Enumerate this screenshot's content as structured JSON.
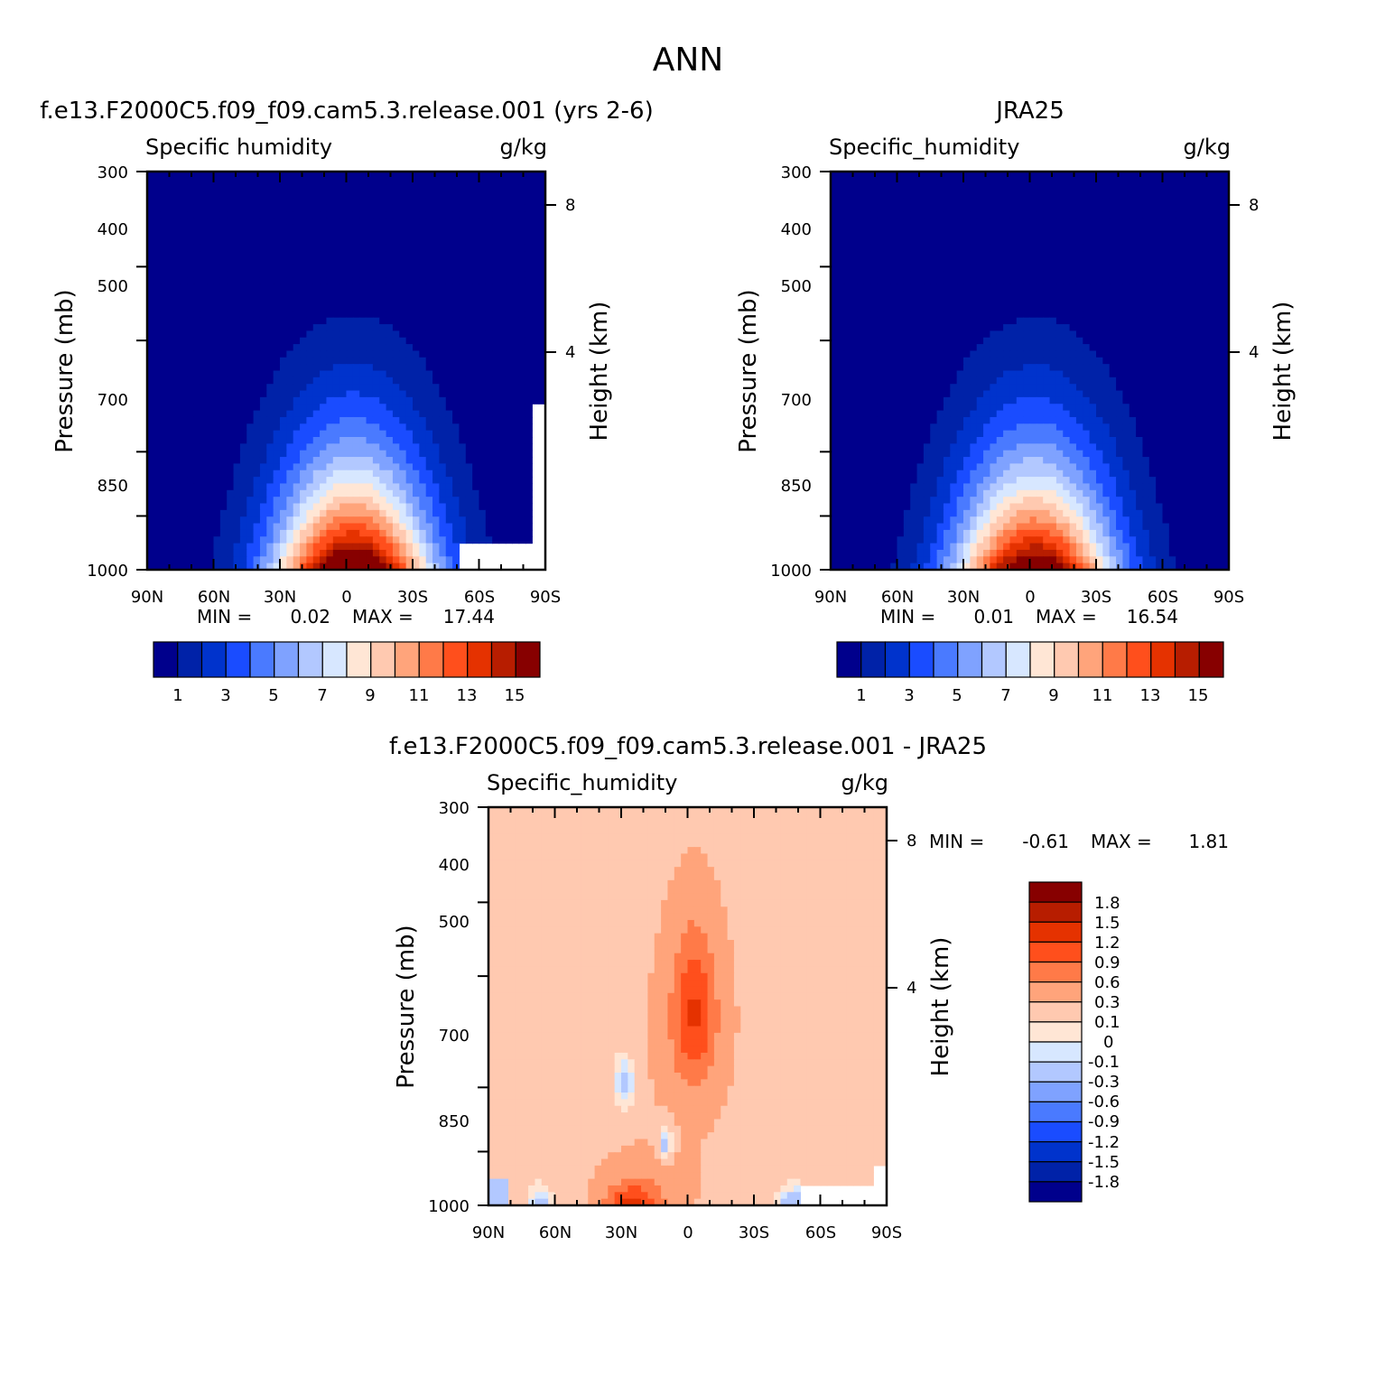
{
  "figure": {
    "title": "ANN"
  },
  "chart_data": [
    {
      "type": "heatmap",
      "id": "model",
      "title": "f.e13.F2000C5.f09_f09.cam5.3.release.001 (yrs 2-6)",
      "left_label": "Specific humidity",
      "right_label": "g/kg",
      "ylabel": "Pressure (mb)",
      "ylabel_right": "Height (km)",
      "xticks": [
        "90N",
        "60N",
        "30N",
        "0",
        "30S",
        "60S",
        "90S"
      ],
      "yticks": [
        "300",
        "400",
        "500",
        "700",
        "850",
        "1000"
      ],
      "height_ticks": [
        "8",
        "4"
      ],
      "stats": {
        "min_label": "MIN =",
        "min": "0.02",
        "max_label": "MAX =",
        "max": "17.44"
      },
      "peak": 17.44,
      "center_lat": -3,
      "colorbar": {
        "levels": [
          1,
          2,
          3,
          4,
          5,
          6,
          7,
          8,
          9,
          10,
          11,
          12,
          13,
          14,
          15
        ],
        "labels": [
          "1",
          "3",
          "5",
          "7",
          "9",
          "11",
          "13",
          "15"
        ]
      },
      "palette": [
        "#00008c",
        "#0022a8",
        "#0033cc",
        "#1a4cff",
        "#4a7aff",
        "#7fa2ff",
        "#b2c8ff",
        "#d7e7ff",
        "#ffe6d5",
        "#ffc9b0",
        "#ffa47b",
        "#ff7a48",
        "#ff4f1c",
        "#e53200",
        "#b71d00",
        "#870000"
      ]
    },
    {
      "type": "heatmap",
      "id": "obs",
      "title": "JRA25",
      "left_label": "Specific_humidity",
      "right_label": "g/kg",
      "ylabel": "Pressure (mb)",
      "ylabel_right": "Height (km)",
      "xticks": [
        "90N",
        "60N",
        "30N",
        "0",
        "30S",
        "60S",
        "90S"
      ],
      "yticks": [
        "300",
        "400",
        "500",
        "700",
        "850",
        "1000"
      ],
      "height_ticks": [
        "8",
        "4"
      ],
      "stats": {
        "min_label": "MIN =",
        "min": "0.01",
        "max_label": "MAX =",
        "max": "16.54"
      },
      "peak": 16.54,
      "center_lat": -2,
      "colorbar": {
        "levels": [
          1,
          2,
          3,
          4,
          5,
          6,
          7,
          8,
          9,
          10,
          11,
          12,
          13,
          14,
          15
        ],
        "labels": [
          "1",
          "3",
          "5",
          "7",
          "9",
          "11",
          "13",
          "15"
        ]
      },
      "palette": [
        "#00008c",
        "#0022a8",
        "#0033cc",
        "#1a4cff",
        "#4a7aff",
        "#7fa2ff",
        "#b2c8ff",
        "#d7e7ff",
        "#ffe6d5",
        "#ffc9b0",
        "#ffa47b",
        "#ff7a48",
        "#ff4f1c",
        "#e53200",
        "#b71d00",
        "#870000"
      ]
    },
    {
      "type": "heatmap",
      "id": "diff",
      "title": "f.e13.F2000C5.f09_f09.cam5.3.release.001 - JRA25",
      "left_label": "Specific_humidity",
      "right_label": "g/kg",
      "ylabel": "Pressure (mb)",
      "ylabel_right": "Height (km)",
      "xticks": [
        "90N",
        "60N",
        "30N",
        "0",
        "30S",
        "60S",
        "90S"
      ],
      "yticks": [
        "300",
        "400",
        "500",
        "700",
        "850",
        "1000"
      ],
      "height_ticks": [
        "8",
        "4"
      ],
      "stats": {
        "min_label": "MIN =",
        "min": "-0.61",
        "max_label": "MAX =",
        "max": "1.81"
      },
      "colorbar": {
        "levels": [
          -1.8,
          -1.5,
          -1.2,
          -0.9,
          -0.6,
          -0.3,
          -0.1,
          0,
          0.1,
          0.3,
          0.6,
          0.9,
          1.2,
          1.5,
          1.8
        ],
        "labels": [
          "1.8",
          "1.5",
          "1.2",
          "0.9",
          "0.6",
          "0.3",
          "0.1",
          "0",
          "-0.1",
          "-0.3",
          "-0.6",
          "-0.9",
          "-1.2",
          "-1.5",
          "-1.8"
        ]
      },
      "palette": [
        "#00008c",
        "#0022a8",
        "#0033cc",
        "#1a4cff",
        "#4a7aff",
        "#7fa2ff",
        "#b2c8ff",
        "#d7e7ff",
        "#ffe6d5",
        "#ffc9b0",
        "#ffa47b",
        "#ff7a48",
        "#ff4f1c",
        "#e53200",
        "#b71d00",
        "#870000"
      ]
    }
  ]
}
